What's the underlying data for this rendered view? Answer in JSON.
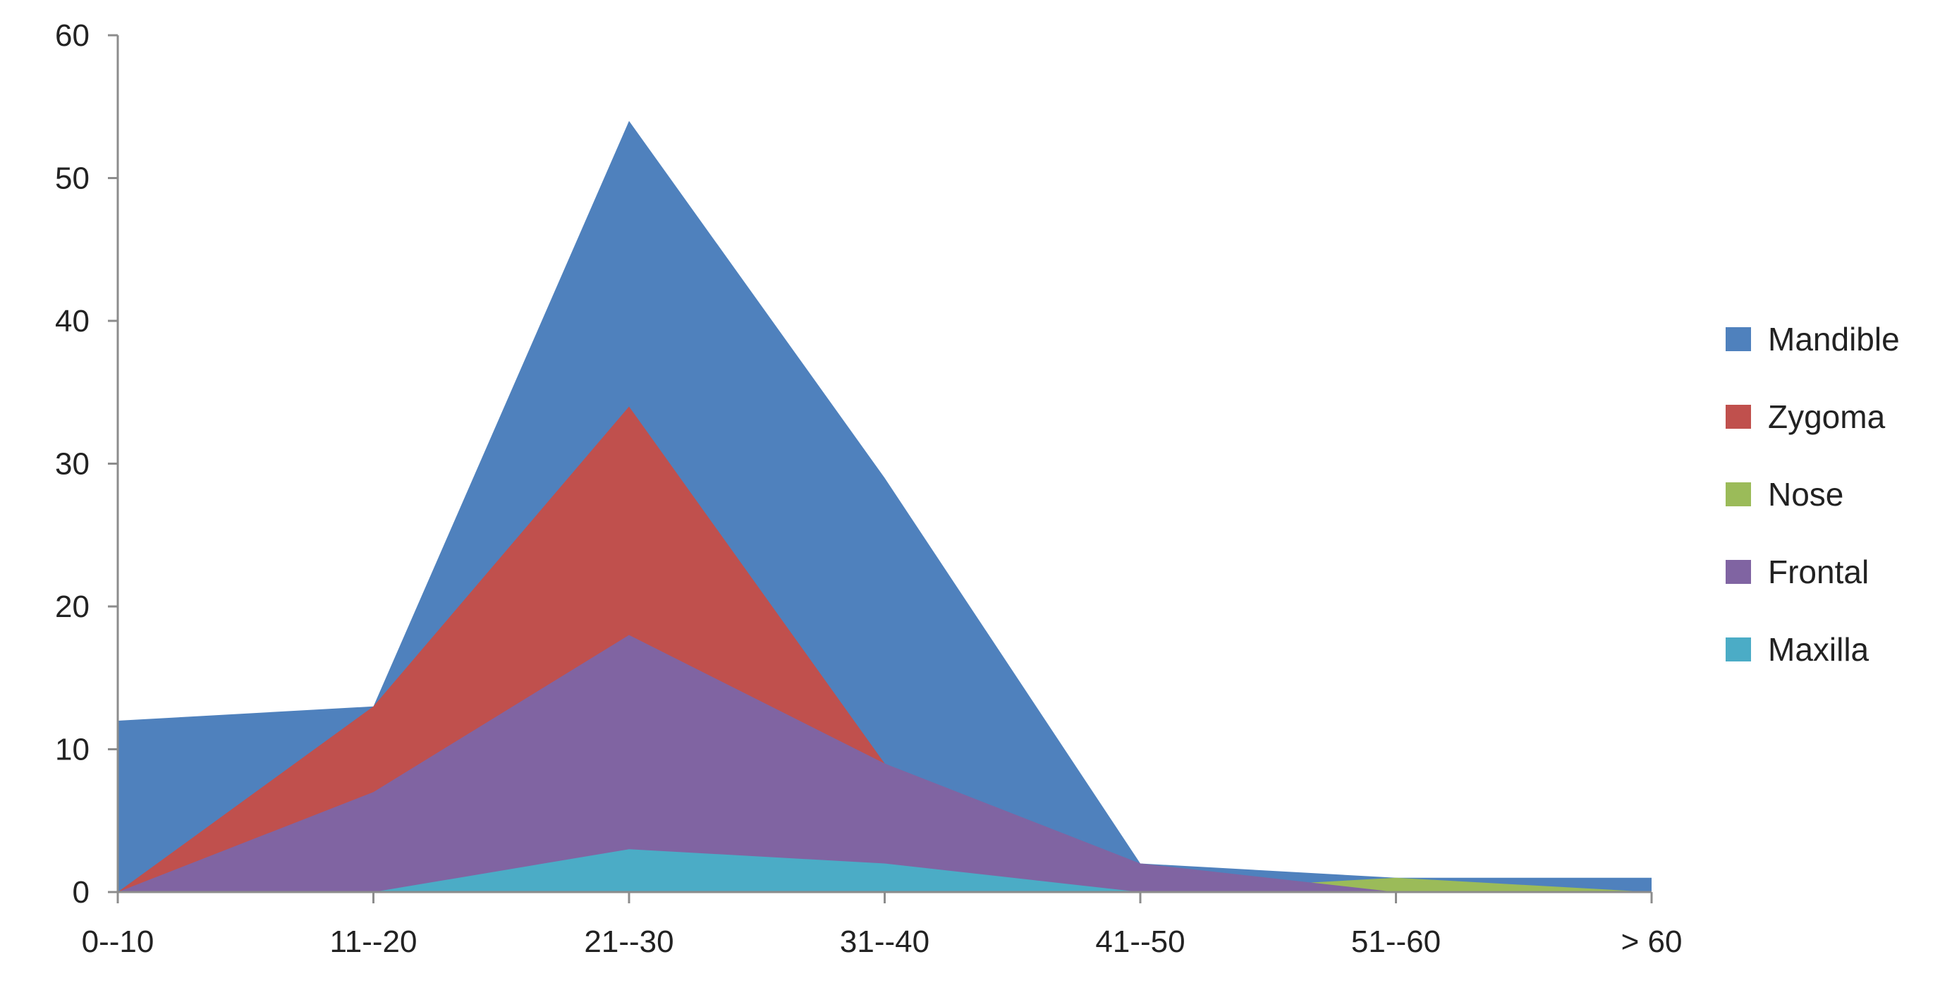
{
  "chart_data": {
    "type": "area",
    "title": "",
    "xlabel": "",
    "ylabel": "",
    "categories": [
      "0--10",
      "11--20",
      "21--30",
      "31--40",
      "41--50",
      "51--60",
      "> 60"
    ],
    "ylim": [
      0,
      60
    ],
    "yticks": [
      0,
      10,
      20,
      30,
      40,
      50,
      60
    ],
    "grid": false,
    "legend_position": "right",
    "series": [
      {
        "name": "Mandible",
        "color": "#4f81bd",
        "values": [
          12,
          13,
          54,
          29,
          2,
          1,
          1
        ]
      },
      {
        "name": "Zygoma",
        "color": "#c0504d",
        "values": [
          0,
          13,
          34,
          9,
          1,
          0,
          0
        ]
      },
      {
        "name": "Nose",
        "color": "#9bbb59",
        "values": [
          0,
          0,
          0,
          0,
          0,
          1,
          0
        ]
      },
      {
        "name": "Frontal",
        "color": "#8064a2",
        "values": [
          0,
          7,
          18,
          9,
          2,
          0,
          0
        ]
      },
      {
        "name": "Maxilla",
        "color": "#4bacc6",
        "values": [
          0,
          0,
          3,
          2,
          0,
          0,
          0
        ]
      }
    ]
  }
}
